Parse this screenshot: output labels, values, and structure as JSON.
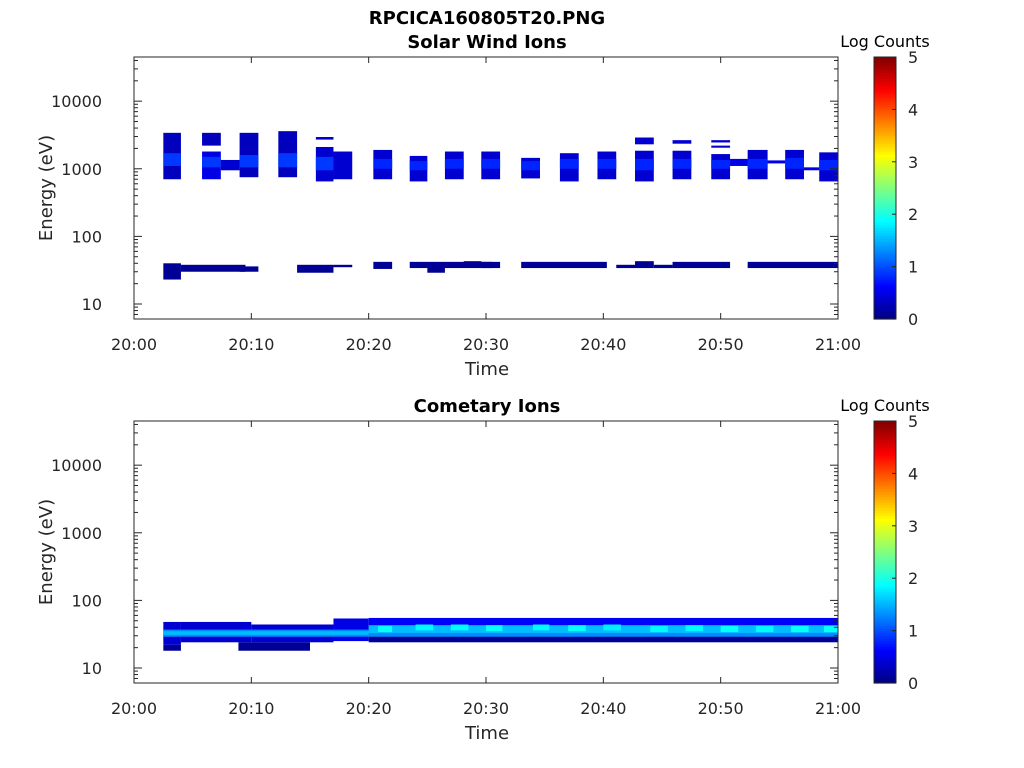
{
  "figure": {
    "title": "RPCICA160805T20.PNG"
  },
  "chart_data": [
    {
      "type": "heatmap",
      "title": "Solar Wind Ions",
      "xlabel": "Time",
      "ylabel": "Energy (eV)",
      "x_ticks": [
        "20:00",
        "20:10",
        "20:20",
        "20:30",
        "20:40",
        "20:50",
        "21:00"
      ],
      "x_range_min": [
        0,
        60
      ],
      "y_ticks": [
        "10",
        "100",
        "1000",
        "10000"
      ],
      "y_tick_values": [
        10,
        100,
        1000,
        10000
      ],
      "y_scale": "log",
      "y_range": [
        6,
        45000
      ],
      "colorbar": {
        "label": "Log Counts",
        "ticks": [
          "0",
          "1",
          "2",
          "3",
          "4",
          "5"
        ],
        "range": [
          0,
          5
        ],
        "colormap": "jet"
      },
      "cells": [
        [
          2.5,
          4,
          700,
          3400,
          0.3
        ],
        [
          2.5,
          4,
          1100,
          1700,
          0.9
        ],
        [
          2.5,
          4,
          23,
          40,
          0.1
        ],
        [
          4,
          9.5,
          30,
          38,
          0.1
        ],
        [
          5.8,
          7.4,
          2200,
          3400,
          0.3
        ],
        [
          5.8,
          7.4,
          700,
          1800,
          0.5
        ],
        [
          5.8,
          7.4,
          1050,
          1500,
          0.9
        ],
        [
          7.4,
          9,
          950,
          1350,
          0.4
        ],
        [
          9,
          10.6,
          750,
          3400,
          0.3
        ],
        [
          9,
          10.6,
          1050,
          1600,
          0.9
        ],
        [
          9,
          10.6,
          30,
          36,
          0.1
        ],
        [
          12.3,
          13.9,
          750,
          3600,
          0.3
        ],
        [
          12.3,
          13.9,
          1050,
          1700,
          0.9
        ],
        [
          13.9,
          17,
          29,
          38,
          0.1
        ],
        [
          15.5,
          17,
          2700,
          2950,
          0.4
        ],
        [
          15.5,
          17,
          650,
          2100,
          0.4
        ],
        [
          15.5,
          17,
          950,
          1500,
          0.9
        ],
        [
          17,
          18.6,
          700,
          1800,
          0.4
        ],
        [
          17,
          18.6,
          35,
          38,
          0.1
        ],
        [
          20.4,
          22,
          700,
          1900,
          0.4
        ],
        [
          20.4,
          22,
          1000,
          1400,
          0.8
        ],
        [
          20.4,
          22,
          33,
          42,
          0.1
        ],
        [
          23.5,
          25,
          650,
          1550,
          0.4
        ],
        [
          23.5,
          25,
          950,
          1300,
          0.8
        ],
        [
          23.5,
          30.5,
          34,
          42,
          0.1
        ],
        [
          25,
          26.5,
          29,
          36,
          0.1
        ],
        [
          26.5,
          28.1,
          700,
          1800,
          0.4
        ],
        [
          26.5,
          28.1,
          1000,
          1400,
          0.8
        ],
        [
          28.1,
          29.6,
          40,
          43,
          0.1
        ],
        [
          29.6,
          31.2,
          700,
          1800,
          0.4
        ],
        [
          29.6,
          31.2,
          1000,
          1400,
          0.8
        ],
        [
          29.6,
          31.2,
          34,
          42,
          0.1
        ],
        [
          33,
          34.6,
          720,
          1450,
          0.4
        ],
        [
          33,
          34.6,
          950,
          1300,
          0.8
        ],
        [
          33,
          40.3,
          34,
          42,
          0.1
        ],
        [
          36.3,
          37.9,
          650,
          1700,
          0.4
        ],
        [
          36.3,
          37.9,
          1000,
          1400,
          0.8
        ],
        [
          39.5,
          41.1,
          700,
          1800,
          0.4
        ],
        [
          39.5,
          41.1,
          1000,
          1400,
          0.8
        ],
        [
          41.1,
          42.7,
          34,
          38,
          0.1
        ],
        [
          42.7,
          44.3,
          2300,
          2900,
          0.4
        ],
        [
          42.7,
          44.3,
          650,
          1850,
          0.4
        ],
        [
          42.7,
          44.3,
          950,
          1400,
          0.8
        ],
        [
          42.7,
          44.3,
          34,
          43,
          0.1
        ],
        [
          44.3,
          45.9,
          34,
          38,
          0.1
        ],
        [
          45.9,
          47.5,
          2350,
          2650,
          0.4
        ],
        [
          45.9,
          47.5,
          700,
          1850,
          0.4
        ],
        [
          45.9,
          47.5,
          1000,
          1400,
          0.8
        ],
        [
          45.9,
          50.8,
          34,
          42,
          0.1
        ],
        [
          49.2,
          50.8,
          2450,
          2650,
          0.4
        ],
        [
          49.2,
          50.8,
          2050,
          2200,
          0.4
        ],
        [
          49.2,
          50.8,
          700,
          1650,
          0.4
        ],
        [
          49.2,
          50.8,
          1000,
          1350,
          0.8
        ],
        [
          50.8,
          52.3,
          1100,
          1400,
          0.5
        ],
        [
          52.3,
          55.5,
          1200,
          1330,
          0.5
        ],
        [
          52.3,
          54,
          700,
          1900,
          0.4
        ],
        [
          52.3,
          54,
          1000,
          1400,
          0.8
        ],
        [
          52.3,
          60,
          34,
          42,
          0.1
        ],
        [
          55.5,
          57.1,
          700,
          1900,
          0.4
        ],
        [
          55.5,
          57.1,
          1000,
          1450,
          0.8
        ],
        [
          57.1,
          58.4,
          950,
          1050,
          0.5
        ],
        [
          58.4,
          60,
          650,
          1750,
          0.4
        ],
        [
          58.4,
          60,
          950,
          1350,
          0.8
        ]
      ]
    },
    {
      "type": "heatmap",
      "title": "Cometary Ions",
      "xlabel": "Time",
      "ylabel": "Energy (eV)",
      "x_ticks": [
        "20:00",
        "20:10",
        "20:20",
        "20:30",
        "20:40",
        "20:50",
        "21:00"
      ],
      "x_range_min": [
        0,
        60
      ],
      "y_ticks": [
        "10",
        "100",
        "1000",
        "10000"
      ],
      "y_tick_values": [
        10,
        100,
        1000,
        10000
      ],
      "y_scale": "log",
      "y_range": [
        6,
        45000
      ],
      "colorbar": {
        "label": "Log Counts",
        "ticks": [
          "0",
          "1",
          "2",
          "3",
          "4",
          "5"
        ],
        "range": [
          0,
          5
        ],
        "colormap": "jet"
      },
      "cells": [
        [
          2.5,
          4,
          18,
          22,
          0.1
        ],
        [
          2.5,
          4,
          22,
          48,
          0.4
        ],
        [
          4,
          10,
          24,
          48,
          0.4
        ],
        [
          8.9,
          15,
          18,
          24,
          0.1
        ],
        [
          10,
          17,
          24,
          44,
          0.4
        ],
        [
          17,
          20,
          25,
          54,
          0.5
        ],
        [
          20,
          60,
          24,
          30,
          0.1
        ],
        [
          20,
          60,
          30,
          55,
          0.6
        ],
        [
          2.5,
          60,
          29,
          37,
          1.3
        ],
        [
          2.5,
          20,
          31,
          35,
          1.55
        ],
        [
          20,
          60,
          33,
          43,
          1.55
        ],
        [
          20.8,
          22,
          34,
          42,
          1.9
        ],
        [
          24,
          25.5,
          36,
          44,
          1.85
        ],
        [
          27,
          28.5,
          36,
          44,
          1.85
        ],
        [
          30,
          31.4,
          35,
          43,
          1.9
        ],
        [
          34,
          35.4,
          36,
          44,
          1.85
        ],
        [
          37,
          38.5,
          35,
          43,
          1.9
        ],
        [
          40,
          41.5,
          36,
          44,
          1.8
        ],
        [
          44,
          45.5,
          34,
          42,
          1.85
        ],
        [
          47,
          48.5,
          35,
          43,
          1.85
        ],
        [
          50,
          51.5,
          34,
          42,
          1.9
        ],
        [
          53,
          54.5,
          34,
          42,
          1.85
        ],
        [
          56,
          57.5,
          34,
          42,
          1.9
        ],
        [
          58.8,
          60,
          34,
          42,
          1.9
        ]
      ]
    }
  ]
}
